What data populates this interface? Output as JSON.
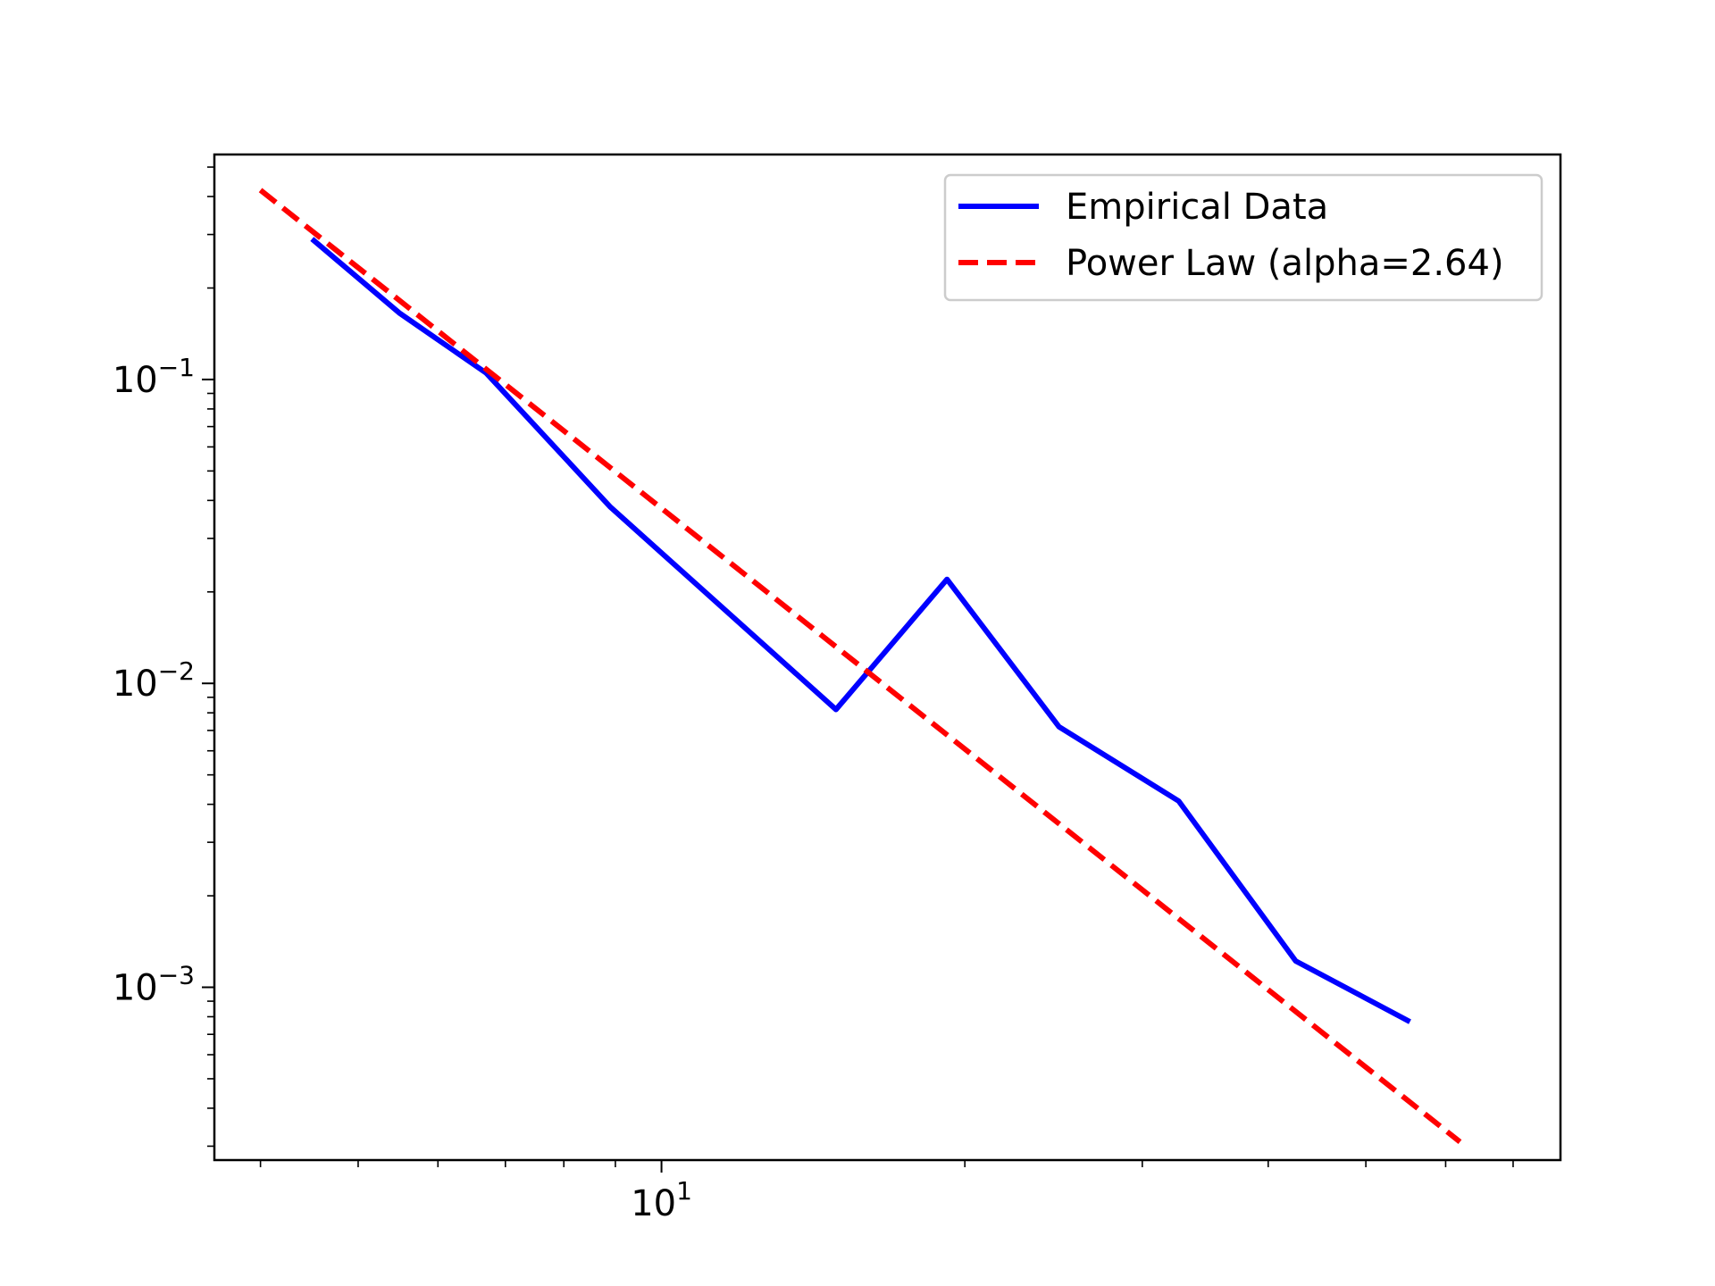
{
  "chart_data": {
    "type": "line",
    "title": "",
    "xlabel": "",
    "ylabel": "",
    "xscale": "log",
    "yscale": "log",
    "xlim": [
      3.6,
      78
    ],
    "ylim": [
      0.00027,
      0.55
    ],
    "grid": false,
    "legend_position": "upper right",
    "x_major_ticks": [
      {
        "value": 10,
        "base": "10",
        "exp": "1"
      }
    ],
    "x_minor_ticks": [
      4,
      5,
      6,
      7,
      8,
      9,
      20,
      30,
      40,
      50,
      60,
      70
    ],
    "y_major_ticks": [
      {
        "value": 0.1,
        "base": "10",
        "exp": "−1"
      },
      {
        "value": 0.01,
        "base": "10",
        "exp": "−2"
      },
      {
        "value": 0.001,
        "base": "10",
        "exp": "−3"
      }
    ],
    "series": [
      {
        "name": "Empirical Data",
        "color": "#0000ff",
        "style": "solid",
        "x": [
          4.5,
          5.5,
          6.7,
          8.9,
          14.9,
          19.2,
          24.8,
          32.6,
          42.6,
          55.3
        ],
        "y": [
          0.29,
          0.165,
          0.105,
          0.038,
          0.0082,
          0.022,
          0.0072,
          0.0041,
          0.00122,
          0.00077
        ]
      },
      {
        "name": "Power Law (alpha=2.64)",
        "color": "#ff0000",
        "style": "dashed",
        "x": [
          4,
          62
        ],
        "y": [
          0.42,
          0.00031
        ]
      }
    ]
  }
}
